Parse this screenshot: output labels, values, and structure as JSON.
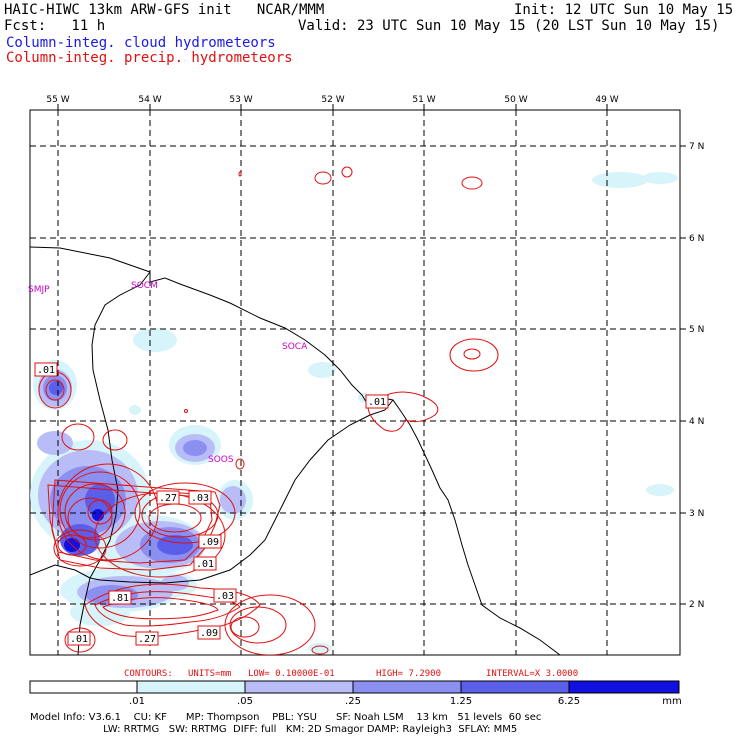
{
  "header": {
    "line1_left": "HAIC-HIWC 13km ARW-GFS init   NCAR/MMM",
    "line1_right": "Init: 12 UTC Sun 10 May 15",
    "line2_left": "Fcst:   11 h",
    "line2_right": "Valid: 23 UTC Sun 10 May 15 (20 LST Sun 10 May 15)",
    "legend_blue": "Column-integ. cloud hydrometeors",
    "legend_red": "Column-integ. precip. hydrometeors"
  },
  "colors": {
    "cloud_fill": [
      "#ffffff",
      "#d6f4fa",
      "#b9bdf7",
      "#8a8ff0",
      "#5a5ee8",
      "#1010e0"
    ],
    "precip_contour": "#e01010",
    "legend_blue": "#1a1ae6",
    "station_label": "#cc00cc"
  },
  "axes": {
    "lon_labels": [
      "55 W",
      "54 W",
      "53 W",
      "52 W",
      "51 W",
      "50 W",
      "49 W"
    ],
    "lat_labels": [
      "7 N",
      "6 N",
      "5 N",
      "4 N",
      "3 N",
      "2 N"
    ]
  },
  "stations": [
    "SMJP",
    "SOCM",
    "SOCA",
    "SOOS"
  ],
  "contour_labels": [
    ".01",
    ".01",
    ".27",
    ".03",
    ".09",
    ".01",
    ".81",
    ".03",
    ".01",
    ".27",
    ".09"
  ],
  "contour_info": {
    "contours": "CONTOURS:",
    "units": "UNITS=mm",
    "low": "LOW= 0.10000E-01",
    "high": "HIGH=  7.2900",
    "interval": "INTERVAL=X  3.0000"
  },
  "colorbar": {
    "ticks": [
      ".01",
      ".05",
      ".25",
      "1.25",
      "6.25"
    ],
    "unit": "mm"
  },
  "model_info": {
    "line1": "Model Info: V3.6.1    CU: KF      MP: Thompson    PBL: YSU      SF: Noah LSM    13 km   51 levels  60 sec",
    "line2": "                       LW: RRTMG   SW: RRTMG  DIFF: full   KM: 2D Smagor DAMP: Rayleigh3  SFLAY: MM5"
  }
}
